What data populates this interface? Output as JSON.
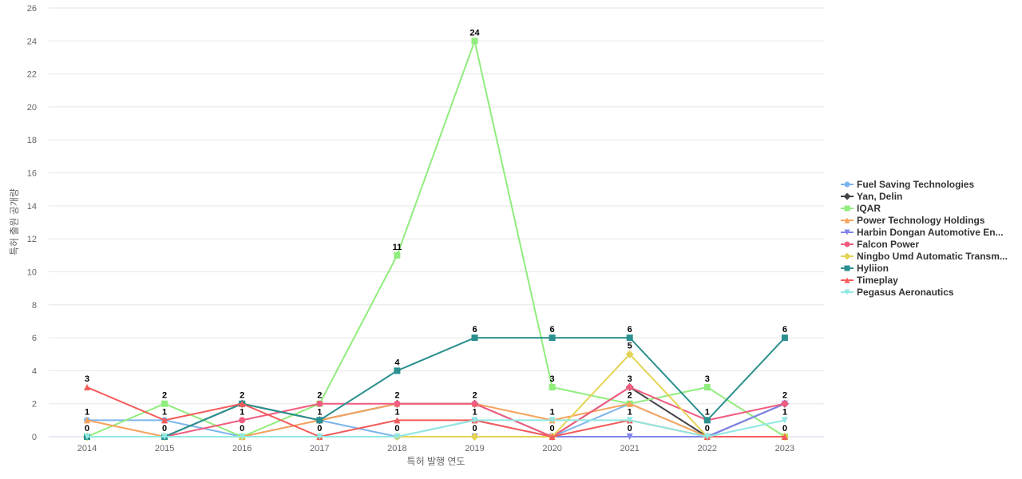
{
  "chart_data": {
    "type": "line",
    "xlabel": "특허 발행 연도",
    "ylabel": "특허 출원 공개량",
    "x": [
      "2014",
      "2015",
      "2016",
      "2017",
      "2018",
      "2019",
      "2020",
      "2021",
      "2022",
      "2023"
    ],
    "ylim": [
      0,
      26
    ],
    "yticks": [
      0,
      2,
      4,
      6,
      8,
      10,
      12,
      14,
      16,
      18,
      20,
      22,
      24,
      26
    ],
    "grid": true,
    "legend_position": "right",
    "series": [
      {
        "name": "Fuel Saving Technologies",
        "color": "#7cb5ec",
        "marker": "circle",
        "values": [
          1,
          1,
          0,
          1,
          0,
          1,
          0,
          2,
          0,
          2
        ]
      },
      {
        "name": "Yan, Delin",
        "color": "#434348",
        "marker": "diamond",
        "values": [
          0,
          0,
          2,
          1,
          2,
          2,
          0,
          3,
          0,
          2
        ]
      },
      {
        "name": "IQAR",
        "color": "#90ed7d",
        "marker": "square",
        "values": [
          0,
          2,
          0,
          2,
          11,
          24,
          3,
          2,
          3,
          0
        ]
      },
      {
        "name": "Power Technology Holdings",
        "color": "#f7a35c",
        "marker": "triangle",
        "values": [
          1,
          0,
          0,
          1,
          2,
          2,
          1,
          2,
          0,
          0
        ]
      },
      {
        "name": "Harbin Dongan Automotive En...",
        "color": "#8085e9",
        "marker": "triangle-down",
        "values": [
          0,
          0,
          0,
          0,
          0,
          0,
          0,
          0,
          0,
          2
        ]
      },
      {
        "name": "Falcon Power",
        "color": "#f15c80",
        "marker": "circle",
        "values": [
          0,
          0,
          1,
          2,
          2,
          2,
          0,
          3,
          1,
          2
        ]
      },
      {
        "name": "Ningbo Umd Automatic Transm...",
        "color": "#e4d354",
        "marker": "diamond",
        "values": [
          0,
          0,
          0,
          0,
          0,
          0,
          0,
          5,
          0,
          0
        ]
      },
      {
        "name": "Hyliion",
        "color": "#2b908f",
        "marker": "square",
        "values": [
          0,
          0,
          2,
          1,
          4,
          6,
          6,
          6,
          1,
          6
        ]
      },
      {
        "name": "Timeplay",
        "color": "#f45b5b",
        "marker": "triangle",
        "values": [
          3,
          1,
          2,
          0,
          1,
          1,
          0,
          1,
          0,
          0
        ]
      },
      {
        "name": "Pegasus Aeronautics",
        "color": "#91e8e1",
        "marker": "triangle-down",
        "values": [
          0,
          0,
          0,
          0,
          0,
          1,
          1,
          1,
          0,
          1
        ]
      }
    ],
    "data_labels": [
      {
        "x": "2014",
        "value": 3,
        "text": "3"
      },
      {
        "x": "2014",
        "value": 1,
        "text": "1"
      },
      {
        "x": "2014",
        "value": 0,
        "text": "0"
      },
      {
        "x": "2015",
        "value": 2,
        "text": "2"
      },
      {
        "x": "2015",
        "value": 1,
        "text": "1"
      },
      {
        "x": "2015",
        "value": 0,
        "text": "0"
      },
      {
        "x": "2016",
        "value": 2,
        "text": "2"
      },
      {
        "x": "2016",
        "value": 1,
        "text": "1"
      },
      {
        "x": "2016",
        "value": 0,
        "text": "0"
      },
      {
        "x": "2017",
        "value": 2,
        "text": "2"
      },
      {
        "x": "2017",
        "value": 1,
        "text": "1"
      },
      {
        "x": "2017",
        "value": 0,
        "text": "0"
      },
      {
        "x": "2018",
        "value": 11,
        "text": "11"
      },
      {
        "x": "2018",
        "value": 4,
        "text": "4"
      },
      {
        "x": "2018",
        "value": 2,
        "text": "2"
      },
      {
        "x": "2018",
        "value": 1,
        "text": "1"
      },
      {
        "x": "2018",
        "value": 0,
        "text": "0"
      },
      {
        "x": "2019",
        "value": 24,
        "text": "24"
      },
      {
        "x": "2019",
        "value": 6,
        "text": "6"
      },
      {
        "x": "2019",
        "value": 2,
        "text": "2"
      },
      {
        "x": "2019",
        "value": 1,
        "text": "1"
      },
      {
        "x": "2019",
        "value": 0,
        "text": "0"
      },
      {
        "x": "2020",
        "value": 6,
        "text": "6"
      },
      {
        "x": "2020",
        "value": 3,
        "text": "3"
      },
      {
        "x": "2020",
        "value": 1,
        "text": "1"
      },
      {
        "x": "2020",
        "value": 0,
        "text": "0"
      },
      {
        "x": "2021",
        "value": 6,
        "text": "6"
      },
      {
        "x": "2021",
        "value": 5,
        "text": "5"
      },
      {
        "x": "2021",
        "value": 3,
        "text": "3"
      },
      {
        "x": "2021",
        "value": 2,
        "text": "2"
      },
      {
        "x": "2021",
        "value": 1,
        "text": "1"
      },
      {
        "x": "2021",
        "value": 0,
        "text": "0"
      },
      {
        "x": "2022",
        "value": 3,
        "text": "3"
      },
      {
        "x": "2022",
        "value": 1,
        "text": "1"
      },
      {
        "x": "2022",
        "value": 0,
        "text": "0"
      },
      {
        "x": "2023",
        "value": 6,
        "text": "6"
      },
      {
        "x": "2023",
        "value": 2,
        "text": "2"
      },
      {
        "x": "2023",
        "value": 1,
        "text": "1"
      },
      {
        "x": "2023",
        "value": 0,
        "text": "0"
      }
    ]
  }
}
